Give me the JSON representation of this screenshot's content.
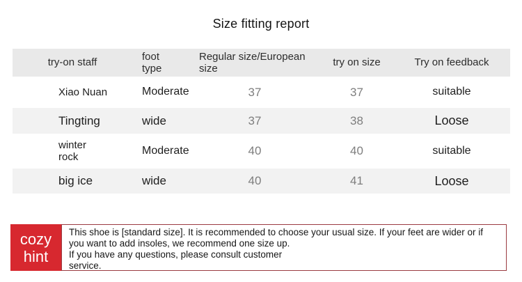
{
  "title": "Size fitting report",
  "table": {
    "headers": [
      "try-on staff",
      "foot type",
      "Regular size/European size",
      "try on size",
      "Try on feedback"
    ],
    "rows": [
      {
        "staff": "Xiao Nuan",
        "foot_type": "Moderate",
        "regular_size": "37",
        "try_on_size": "37",
        "feedback": "suitable"
      },
      {
        "staff": "Tingting",
        "foot_type": "wide",
        "regular_size": "37",
        "try_on_size": "38",
        "feedback": "Loose"
      },
      {
        "staff": "winter rock",
        "foot_type": "Moderate",
        "regular_size": "40",
        "try_on_size": "40",
        "feedback": "suitable"
      },
      {
        "staff": "big ice",
        "foot_type": "wide",
        "regular_size": "40",
        "try_on_size": "41",
        "feedback": "Loose"
      }
    ]
  },
  "hint": {
    "label": "cozy hint",
    "paragraphs": [
      "This shoe is [standard size]. It is recommended to choose your usual size. If your feet are wider or if you want to add insoles, we recommend one size up.",
      "If you have any questions, please consult customer service."
    ]
  },
  "colors": {
    "accent_red": "#d7282f",
    "hint_border": "#9a3a40",
    "header_bg": "#e9e9e9",
    "alt_row_bg": "#f2f2f2",
    "number_gray": "#7e7e7e"
  }
}
